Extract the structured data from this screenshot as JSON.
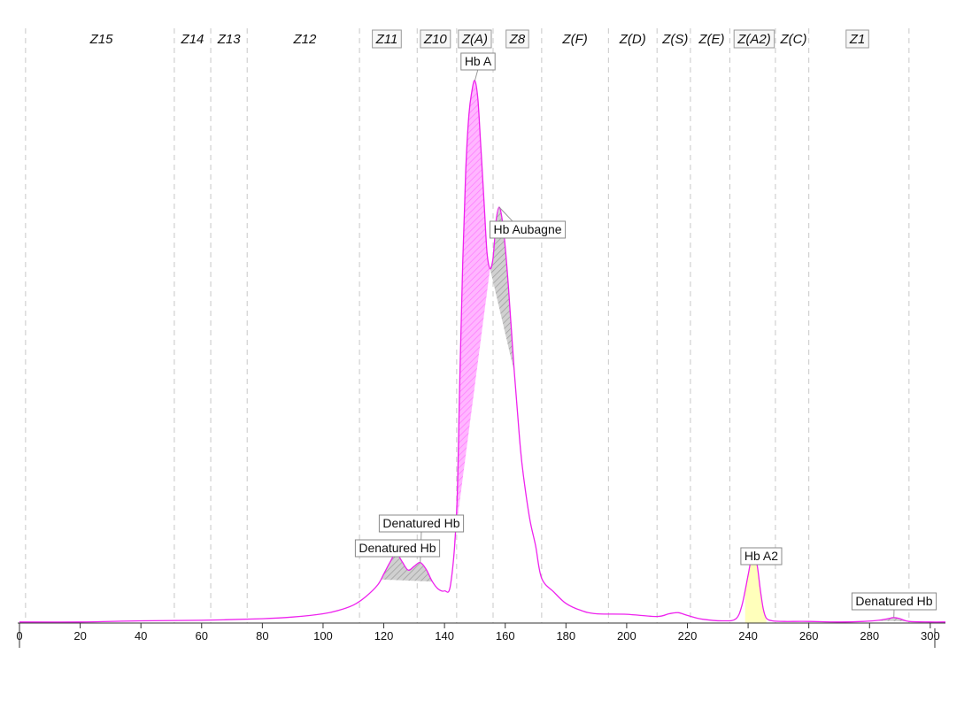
{
  "chart_data": {
    "type": "line",
    "title": "",
    "xlabel": "",
    "ylabel": "",
    "xlim": [
      0,
      305
    ],
    "ylim": [
      0,
      100
    ],
    "x_ticks": [
      0,
      20,
      40,
      60,
      80,
      100,
      120,
      140,
      160,
      180,
      200,
      220,
      240,
      260,
      280,
      300
    ],
    "grid": "vertical zone boundaries only",
    "zone_boundaries": [
      2,
      51,
      63,
      75,
      112,
      131,
      144,
      156,
      172,
      194,
      210,
      221,
      234,
      249,
      260,
      293
    ],
    "zones": [
      {
        "label": "Z15",
        "center": 27,
        "boxed": false
      },
      {
        "label": "Z14",
        "center": 57,
        "boxed": false
      },
      {
        "label": "Z13",
        "center": 69,
        "boxed": false
      },
      {
        "label": "Z12",
        "center": 94,
        "boxed": false
      },
      {
        "label": "Z11",
        "center": 121,
        "boxed": true
      },
      {
        "label": "Z10",
        "center": 137,
        "boxed": true
      },
      {
        "label": "Z(A)",
        "center": 150,
        "boxed": true
      },
      {
        "label": "Z8",
        "center": 164,
        "boxed": true
      },
      {
        "label": "Z(F)",
        "center": 183,
        "boxed": false
      },
      {
        "label": "Z(D)",
        "center": 202,
        "boxed": false
      },
      {
        "label": "Z(S)",
        "center": 216,
        "boxed": false
      },
      {
        "label": "Z(E)",
        "center": 228,
        "boxed": false
      },
      {
        "label": "Z(A2)",
        "center": 242,
        "boxed": true
      },
      {
        "label": "Z(C)",
        "center": 255,
        "boxed": false
      },
      {
        "label": "Z1",
        "center": 276,
        "boxed": true
      }
    ],
    "series": [
      {
        "color": "#ee22ee",
        "x": [
          0,
          20,
          40,
          60,
          80,
          90,
          100,
          105,
          110,
          114,
          118,
          120,
          122,
          124,
          126,
          128,
          130,
          132,
          134,
          136,
          138,
          140,
          142,
          144,
          145,
          146,
          147,
          148,
          149,
          150,
          151,
          152,
          153,
          154,
          155,
          156,
          157,
          158,
          159,
          160,
          161,
          162,
          163,
          164,
          165,
          166,
          168,
          170,
          172,
          176,
          180,
          185,
          190,
          200,
          210,
          214,
          217,
          220,
          225,
          232,
          236,
          238,
          240,
          241,
          242,
          243,
          244,
          245,
          246,
          248,
          252,
          260,
          270,
          278,
          283,
          286,
          288,
          290,
          293,
          300,
          305
        ],
        "y": [
          0.2,
          0.2,
          0.4,
          0.5,
          0.8,
          1.1,
          1.7,
          2.3,
          3.3,
          4.8,
          7.0,
          9.0,
          11.1,
          12.8,
          11.3,
          9.7,
          10.4,
          11.1,
          9.8,
          7.6,
          6.2,
          5.9,
          7.1,
          20.4,
          44.0,
          66.0,
          83.0,
          93.0,
          97.5,
          99.5,
          96.0,
          87.0,
          77.5,
          68.0,
          65.0,
          67.0,
          73.8,
          76.3,
          74.0,
          69.0,
          62.0,
          54.0,
          46.0,
          39.0,
          32.0,
          27.0,
          19.3,
          14.2,
          8.2,
          5.7,
          3.6,
          2.3,
          1.7,
          1.6,
          1.2,
          1.7,
          1.9,
          1.4,
          0.7,
          0.4,
          0.8,
          3.3,
          8.8,
          11.6,
          11.8,
          10.5,
          6.2,
          2.6,
          0.9,
          0.4,
          0.3,
          0.3,
          0.2,
          0.3,
          0.5,
          0.8,
          1.0,
          0.8,
          0.3,
          0.2,
          0.2
        ]
      }
    ],
    "annotations": [
      {
        "text": "Hb A",
        "x": 150,
        "y": 99.5
      },
      {
        "text": "Hb Aubagne",
        "x": 158,
        "y": 76.3
      },
      {
        "text": "Denatured Hb",
        "x": 132,
        "y": 11.1
      },
      {
        "text": "Denatured Hb",
        "x": 124,
        "y": 12.8
      },
      {
        "text": "Hb A2",
        "x": 242,
        "y": 11.8
      },
      {
        "text": "Denatured Hb",
        "x": 288,
        "y": 1.0
      }
    ],
    "shaded_areas": [
      {
        "annotation": "Hb A",
        "color": "#ff66ff",
        "hatch": "diagonal",
        "x_range": [
          143,
          155
        ]
      },
      {
        "annotation": "Hb Aubagne",
        "color": "#999999",
        "hatch": "diagonal",
        "x_range": [
          155,
          163
        ]
      },
      {
        "annotation": "Denatured Hb",
        "color": "#999999",
        "hatch": "diagonal",
        "x_range": [
          119,
          136
        ]
      },
      {
        "annotation": "Hb A2",
        "color": "#ffffbb",
        "hatch": "none",
        "x_range": [
          239,
          246
        ]
      },
      {
        "annotation": "Denatured Hb",
        "color": "#999999",
        "hatch": "diagonal",
        "x_range": [
          281,
          294
        ]
      }
    ]
  }
}
